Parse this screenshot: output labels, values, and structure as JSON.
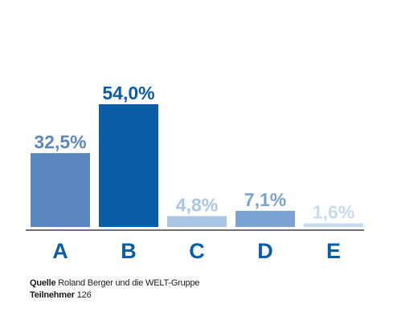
{
  "chart_data": {
    "type": "bar",
    "categories": [
      "A",
      "B",
      "C",
      "D",
      "E"
    ],
    "values": [
      32.5,
      54.0,
      4.8,
      7.1,
      1.6
    ],
    "value_labels": [
      "32,5%",
      "54,0%",
      "4,8%",
      "7,1%",
      "1,6%"
    ],
    "colors": [
      "#5b87bf",
      "#0a5ca6",
      "#aac5e3",
      "#7aa3d4",
      "#c8dbee"
    ],
    "ylim": [
      0,
      54
    ],
    "grid": false,
    "title": "",
    "xlabel": "",
    "ylabel": ""
  },
  "footer": {
    "source_label": "Quelle",
    "source_value": "Roland Berger und die WELT-Gruppe",
    "participants_label": "Teilnehmer",
    "participants_value": "126"
  }
}
